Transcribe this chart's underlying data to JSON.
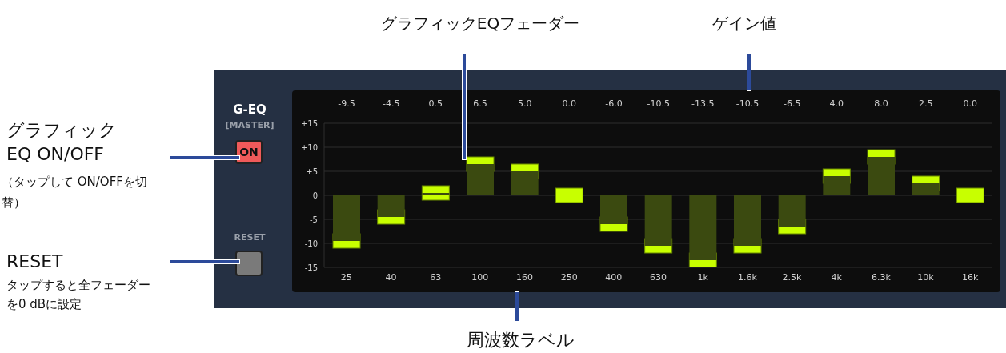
{
  "chart_data": {
    "type": "bar",
    "title": "G-EQ",
    "subtitle": "[MASTER]",
    "categories": [
      "25",
      "40",
      "63",
      "100",
      "160",
      "250",
      "400",
      "630",
      "1k",
      "1.6k",
      "2.5k",
      "4k",
      "6.3k",
      "10k",
      "16k"
    ],
    "values": [
      -9.5,
      -4.5,
      0.5,
      6.5,
      5.0,
      0.0,
      -6.0,
      -10.5,
      -13.5,
      -10.5,
      -6.5,
      4.0,
      8.0,
      2.5,
      0.0
    ],
    "value_labels": [
      "-9.5",
      "-4.5",
      "0.5",
      "6.5",
      "5.0",
      "0.0",
      "-6.0",
      "-10.5",
      "-13.5",
      "-10.5",
      "-6.5",
      "4.0",
      "8.0",
      "2.5",
      "0.0"
    ],
    "color": "#3b4a10",
    "ylim": [
      -15,
      15
    ],
    "yticks": [
      {
        "value": 15,
        "label": "+15"
      },
      {
        "value": 10,
        "label": "+10"
      },
      {
        "value": 5,
        "label": "+5"
      },
      0,
      -5,
      -10,
      -15
    ],
    "grid": "y",
    "annotations": [
      "グラフィックEQフェーダー",
      "ゲイン値",
      "周波数ラベル",
      "グラフィック EQ ON/OFF",
      "（タップして ON/OFFを切替）",
      "RESET",
      "タップすると全フェーダーを0 dBに設定",
      "ON",
      "RESET"
    ]
  }
}
